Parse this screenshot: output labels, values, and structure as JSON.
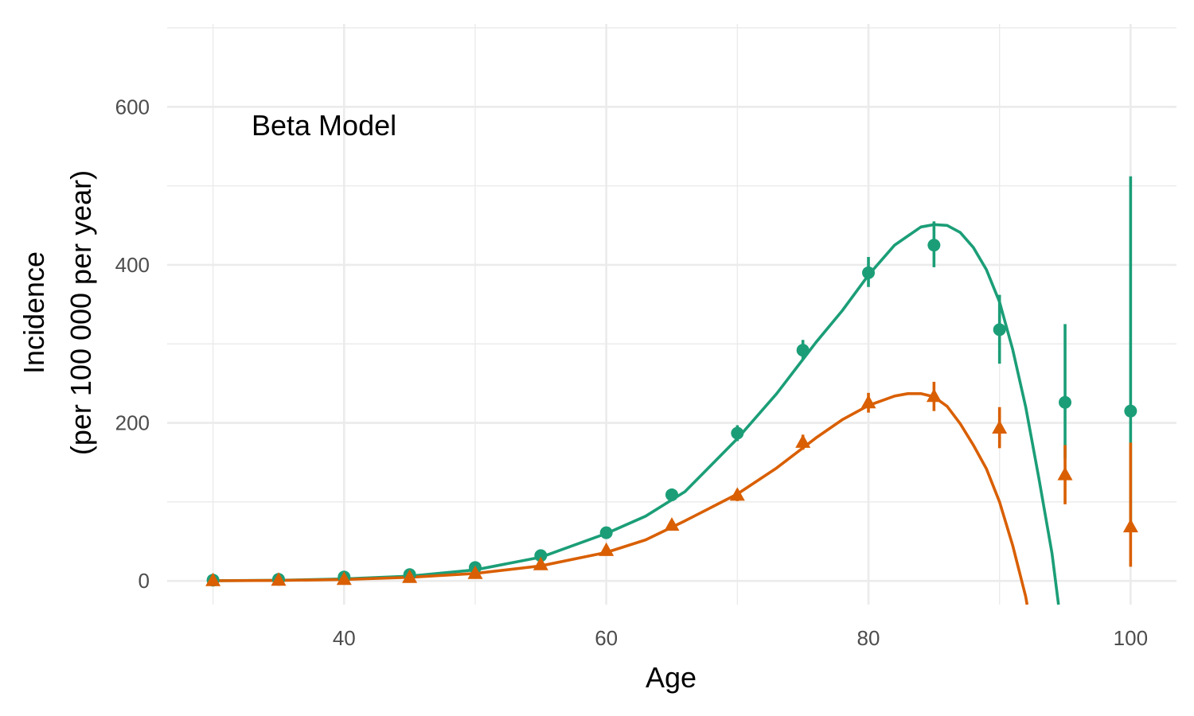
{
  "chart_data": {
    "type": "line",
    "xlabel": "Age",
    "ylabel_line1": "Incidence",
    "ylabel_line2": "(per 100 000 per year)",
    "annotation": "Beta Model",
    "xlim": [
      26.5,
      103.5
    ],
    "ylim": [
      -30,
      705
    ],
    "x_ticks": [
      40,
      60,
      80,
      100
    ],
    "y_ticks": [
      0,
      200,
      400,
      600
    ],
    "x_minor": [
      30,
      50,
      70,
      90
    ],
    "y_minor": [
      100,
      300,
      500,
      700
    ],
    "grid": true,
    "colors": {
      "series_a": "#1b9e77",
      "series_b": "#d95f02"
    },
    "series": [
      {
        "key": "series_a",
        "marker": "circle",
        "points": [
          {
            "x": 30,
            "y": 1,
            "lo": 0,
            "hi": 5
          },
          {
            "x": 35,
            "y": 2,
            "lo": 0,
            "hi": 6
          },
          {
            "x": 40,
            "y": 5,
            "lo": 2,
            "hi": 8
          },
          {
            "x": 45,
            "y": 8,
            "lo": 5,
            "hi": 11
          },
          {
            "x": 50,
            "y": 17,
            "lo": 13,
            "hi": 21
          },
          {
            "x": 55,
            "y": 32,
            "lo": 27,
            "hi": 37
          },
          {
            "x": 60,
            "y": 61,
            "lo": 55,
            "hi": 67
          },
          {
            "x": 65,
            "y": 109,
            "lo": 101,
            "hi": 117
          },
          {
            "x": 70,
            "y": 187,
            "lo": 177,
            "hi": 197
          },
          {
            "x": 75,
            "y": 292,
            "lo": 280,
            "hi": 305
          },
          {
            "x": 80,
            "y": 390,
            "lo": 372,
            "hi": 410
          },
          {
            "x": 85,
            "y": 425,
            "lo": 397,
            "hi": 455
          },
          {
            "x": 90,
            "y": 318,
            "lo": 275,
            "hi": 362
          },
          {
            "x": 95,
            "y": 226,
            "lo": 155,
            "hi": 325
          },
          {
            "x": 100,
            "y": 215,
            "lo": 70,
            "hi": 512
          }
        ],
        "fit": [
          [
            30,
            0.3
          ],
          [
            35,
            0.8
          ],
          [
            40,
            2.5
          ],
          [
            45,
            6
          ],
          [
            50,
            14
          ],
          [
            55,
            30
          ],
          [
            60,
            60
          ],
          [
            63,
            82
          ],
          [
            66,
            113
          ],
          [
            70,
            180
          ],
          [
            73,
            237
          ],
          [
            76,
            302
          ],
          [
            78,
            342
          ],
          [
            80,
            387
          ],
          [
            82,
            425
          ],
          [
            84,
            448
          ],
          [
            85,
            451
          ],
          [
            86,
            450
          ],
          [
            87,
            441
          ],
          [
            88,
            422
          ],
          [
            89,
            394
          ],
          [
            90,
            353
          ],
          [
            91,
            293
          ],
          [
            92,
            220
          ],
          [
            93,
            130
          ],
          [
            94,
            35
          ],
          [
            94.5,
            -30
          ]
        ]
      },
      {
        "key": "series_b",
        "marker": "triangle",
        "points": [
          {
            "x": 30,
            "y": 0,
            "lo": 0,
            "hi": 3
          },
          {
            "x": 35,
            "y": 0.5,
            "lo": 0,
            "hi": 3
          },
          {
            "x": 40,
            "y": 1.5,
            "lo": 0,
            "hi": 4
          },
          {
            "x": 45,
            "y": 4,
            "lo": 2,
            "hi": 7
          },
          {
            "x": 50,
            "y": 9,
            "lo": 6,
            "hi": 12
          },
          {
            "x": 55,
            "y": 20,
            "lo": 16,
            "hi": 24
          },
          {
            "x": 60,
            "y": 38,
            "lo": 33,
            "hi": 43
          },
          {
            "x": 65,
            "y": 70,
            "lo": 64,
            "hi": 76
          },
          {
            "x": 70,
            "y": 108,
            "lo": 101,
            "hi": 116
          },
          {
            "x": 75,
            "y": 175,
            "lo": 166,
            "hi": 185
          },
          {
            "x": 80,
            "y": 225,
            "lo": 213,
            "hi": 238
          },
          {
            "x": 85,
            "y": 233,
            "lo": 215,
            "hi": 252
          },
          {
            "x": 90,
            "y": 193,
            "lo": 168,
            "hi": 220
          },
          {
            "x": 95,
            "y": 134,
            "lo": 97,
            "hi": 172
          },
          {
            "x": 100,
            "y": 68,
            "lo": 18,
            "hi": 175
          }
        ],
        "fit": [
          [
            30,
            0.2
          ],
          [
            35,
            0.6
          ],
          [
            40,
            1.8
          ],
          [
            45,
            4.5
          ],
          [
            50,
            9.5
          ],
          [
            55,
            19
          ],
          [
            60,
            36
          ],
          [
            63,
            52
          ],
          [
            66,
            76
          ],
          [
            70,
            110
          ],
          [
            73,
            143
          ],
          [
            76,
            181
          ],
          [
            78,
            204
          ],
          [
            80,
            222
          ],
          [
            82,
            234
          ],
          [
            83,
            237
          ],
          [
            84,
            237
          ],
          [
            85,
            233
          ],
          [
            86,
            221
          ],
          [
            87,
            199
          ],
          [
            88,
            172
          ],
          [
            89,
            142
          ],
          [
            90,
            100
          ],
          [
            91,
            45
          ],
          [
            92,
            -20
          ],
          [
            92.1,
            -30
          ]
        ]
      }
    ]
  }
}
